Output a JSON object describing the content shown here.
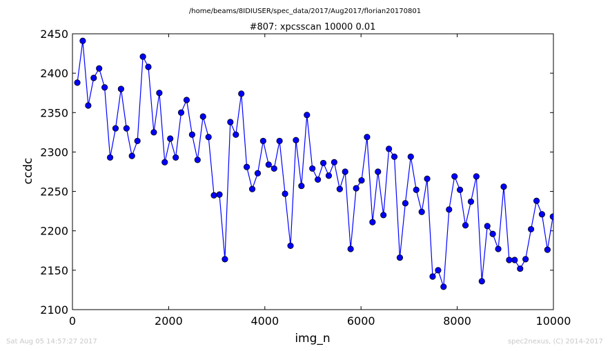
{
  "header": {
    "path": "/home/beams/8IDIUSER/spec_data/2017/Aug2017/florian20170801",
    "scan": "#807: xpcsscan 10000 0.01"
  },
  "footer": {
    "timestamp": "Sat Aug 05 14:57:27 2017",
    "credit": "spec2nexus, (C) 2014-2017"
  },
  "colors": {
    "series": "#0000ff",
    "marker_edge": "#000000",
    "axes": "#000000",
    "footer_text": "#c8c8c8"
  },
  "chart_data": {
    "type": "line",
    "title": "#807: xpcsscan 10000 0.01",
    "xlabel": "img_n",
    "ylabel": "ccdc",
    "xlim": [
      0,
      10000
    ],
    "ylim": [
      2100,
      2450
    ],
    "xticks": [
      0,
      2000,
      4000,
      6000,
      8000,
      10000
    ],
    "yticks": [
      2100,
      2150,
      2200,
      2250,
      2300,
      2350,
      2400,
      2450
    ],
    "grid": false,
    "legend": false,
    "marker": "circle",
    "series": [
      {
        "x": [
          101,
          214,
          328,
          442,
          555,
          669,
          783,
          896,
          1010,
          1124,
          1237,
          1351,
          1465,
          1578,
          1692,
          1806,
          1919,
          2033,
          2147,
          2260,
          2374,
          2488,
          2601,
          2715,
          2829,
          2942,
          3056,
          3170,
          3283,
          3397,
          3511,
          3624,
          3738,
          3852,
          3965,
          4079,
          4193,
          4306,
          4420,
          4534,
          4647,
          4761,
          4875,
          4988,
          5102,
          5216,
          5329,
          5443,
          5557,
          5670,
          5784,
          5898,
          6011,
          6125,
          6239,
          6352,
          6466,
          6580,
          6693,
          6807,
          6921,
          7034,
          7148,
          7262,
          7375,
          7489,
          7603,
          7716,
          7830,
          7944,
          8057,
          8171,
          8285,
          8398,
          8512,
          8626,
          8739,
          8853,
          8967,
          9080,
          9194,
          9308,
          9421,
          9535,
          9649,
          9762,
          9876,
          9990
        ],
        "y": [
          2388,
          2441,
          2359,
          2394,
          2406,
          2382,
          2293,
          2330,
          2380,
          2330,
          2295,
          2314,
          2421,
          2408,
          2325,
          2375,
          2287,
          2317,
          2293,
          2350,
          2366,
          2322,
          2290,
          2345,
          2319,
          2245,
          2246,
          2164,
          2338,
          2322,
          2374,
          2281,
          2253,
          2273,
          2314,
          2284,
          2279,
          2314,
          2247,
          2181,
          2315,
          2257,
          2347,
          2279,
          2265,
          2286,
          2270,
          2287,
          2253,
          2275,
          2177,
          2254,
          2264,
          2319,
          2211,
          2275,
          2220,
          2304,
          2294,
          2166,
          2235,
          2294,
          2252,
          2224,
          2266,
          2142,
          2150,
          2129,
          2227,
          2269,
          2252,
          2207,
          2237,
          2269,
          2136,
          2206,
          2196,
          2177,
          2256,
          2163,
          2163,
          2152,
          2164,
          2202,
          2238,
          2221,
          2176,
          2218
        ]
      }
    ]
  }
}
